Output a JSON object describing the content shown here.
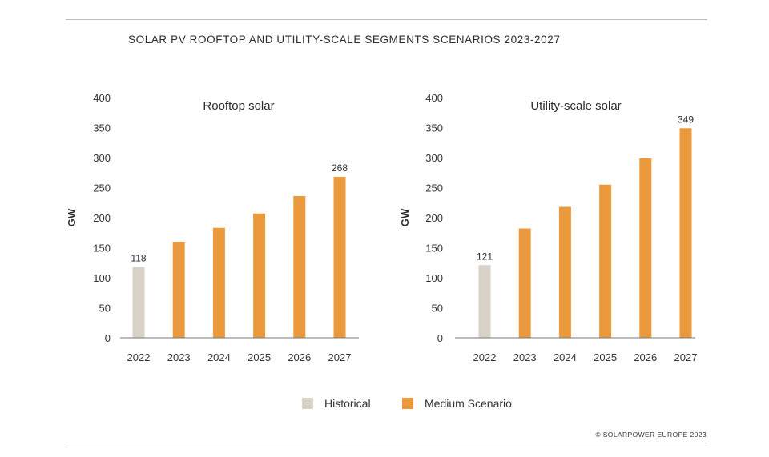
{
  "figure_title": "SOLAR PV ROOFTOP AND UTILITY-SCALE SEGMENTS SCENARIOS 2023-2027",
  "legend": {
    "historical": "Historical",
    "medium": "Medium Scenario"
  },
  "colors": {
    "historical": "#d9d0c8",
    "medium": "#ea9a3d"
  },
  "footer": "© SOLARPOWER EUROPE 2023",
  "chart_data": [
    {
      "type": "bar",
      "title": "Rooftop solar",
      "ylabel": "GW",
      "ylim": [
        0,
        400
      ],
      "yticks": [
        0,
        50,
        100,
        150,
        200,
        250,
        300,
        350,
        400
      ],
      "categories": [
        "2022",
        "2023",
        "2024",
        "2025",
        "2026",
        "2027"
      ],
      "values": [
        118,
        160,
        183,
        207,
        236,
        268
      ],
      "kinds": [
        "historical",
        "medium",
        "medium",
        "medium",
        "medium",
        "medium"
      ],
      "data_labels": [
        "118",
        "",
        "",
        "",
        "",
        "268"
      ]
    },
    {
      "type": "bar",
      "title": "Utility-scale solar",
      "ylabel": "GW",
      "ylim": [
        0,
        400
      ],
      "yticks": [
        0,
        50,
        100,
        150,
        200,
        250,
        300,
        350,
        400
      ],
      "categories": [
        "2022",
        "2023",
        "2024",
        "2025",
        "2026",
        "2027"
      ],
      "values": [
        121,
        182,
        218,
        255,
        299,
        349
      ],
      "kinds": [
        "historical",
        "medium",
        "medium",
        "medium",
        "medium",
        "medium"
      ],
      "data_labels": [
        "121",
        "",
        "",
        "",
        "",
        "349"
      ]
    }
  ]
}
